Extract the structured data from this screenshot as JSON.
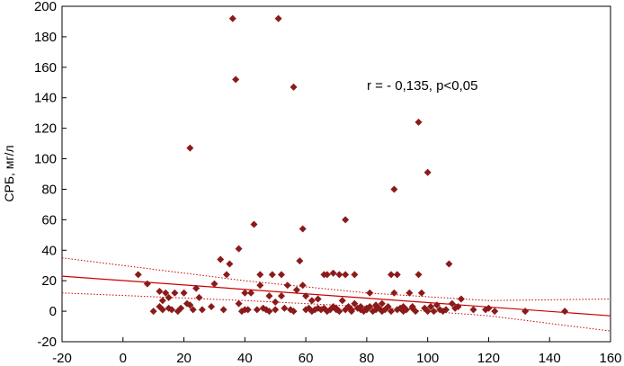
{
  "chart_data": {
    "type": "scatter",
    "title": "",
    "xlabel": "",
    "ylabel": "СРБ, мг/л",
    "xlim": [
      -20,
      160
    ],
    "ylim": [
      -20,
      200
    ],
    "xticks": [
      "-20",
      "0",
      "20",
      "40",
      "60",
      "80",
      "100",
      "120",
      "140",
      "160"
    ],
    "yticks": [
      "-20",
      "0",
      "20",
      "40",
      "60",
      "80",
      "100",
      "120",
      "140",
      "160",
      "180",
      "200"
    ],
    "grid": false,
    "annotation": "r = - 0,135, p<0,05",
    "marker_color": "#8b1a1a",
    "line_color": "#cc0000",
    "regression_line": [
      {
        "x": -20,
        "y": 23
      },
      {
        "x": 160,
        "y": -3
      }
    ],
    "confidence_upper": [
      {
        "x": -20,
        "y": 35
      },
      {
        "x": 40,
        "y": 20
      },
      {
        "x": 80,
        "y": 12
      },
      {
        "x": 120,
        "y": 7
      },
      {
        "x": 160,
        "y": 8
      }
    ],
    "confidence_lower": [
      {
        "x": -20,
        "y": 12
      },
      {
        "x": 40,
        "y": 7
      },
      {
        "x": 80,
        "y": 3
      },
      {
        "x": 120,
        "y": -3
      },
      {
        "x": 160,
        "y": -13
      }
    ],
    "points": [
      [
        5,
        24
      ],
      [
        8,
        18
      ],
      [
        10,
        0
      ],
      [
        12,
        3
      ],
      [
        12,
        13
      ],
      [
        13,
        1
      ],
      [
        13,
        7
      ],
      [
        14,
        12
      ],
      [
        15,
        2
      ],
      [
        15,
        9
      ],
      [
        16,
        1
      ],
      [
        17,
        12
      ],
      [
        18,
        0
      ],
      [
        19,
        2
      ],
      [
        20,
        12
      ],
      [
        21,
        5
      ],
      [
        22,
        107
      ],
      [
        22,
        4
      ],
      [
        23,
        1
      ],
      [
        24,
        15
      ],
      [
        25,
        9
      ],
      [
        26,
        1
      ],
      [
        29,
        3
      ],
      [
        30,
        18
      ],
      [
        32,
        34
      ],
      [
        33,
        1
      ],
      [
        34,
        24
      ],
      [
        35,
        31
      ],
      [
        36,
        192
      ],
      [
        37,
        152
      ],
      [
        38,
        41
      ],
      [
        38,
        5
      ],
      [
        39,
        0
      ],
      [
        40,
        1
      ],
      [
        40,
        12
      ],
      [
        41,
        1
      ],
      [
        42,
        12
      ],
      [
        43,
        57
      ],
      [
        44,
        1
      ],
      [
        45,
        24
      ],
      [
        45,
        17
      ],
      [
        46,
        2
      ],
      [
        47,
        1
      ],
      [
        48,
        0
      ],
      [
        48,
        10
      ],
      [
        49,
        24
      ],
      [
        50,
        1
      ],
      [
        50,
        6
      ],
      [
        51,
        192
      ],
      [
        52,
        10
      ],
      [
        52,
        24
      ],
      [
        53,
        2
      ],
      [
        54,
        17
      ],
      [
        55,
        1
      ],
      [
        56,
        147
      ],
      [
        56,
        0
      ],
      [
        57,
        14
      ],
      [
        58,
        33
      ],
      [
        59,
        54
      ],
      [
        59,
        17
      ],
      [
        60,
        1
      ],
      [
        60,
        10
      ],
      [
        61,
        2
      ],
      [
        62,
        0
      ],
      [
        62,
        7
      ],
      [
        63,
        1
      ],
      [
        64,
        8
      ],
      [
        64,
        2
      ],
      [
        65,
        1
      ],
      [
        66,
        24
      ],
      [
        66,
        2
      ],
      [
        67,
        0
      ],
      [
        67,
        24
      ],
      [
        68,
        1
      ],
      [
        69,
        25
      ],
      [
        69,
        3
      ],
      [
        70,
        2
      ],
      [
        70,
        1
      ],
      [
        71,
        24
      ],
      [
        71,
        0
      ],
      [
        72,
        7
      ],
      [
        73,
        1
      ],
      [
        73,
        60
      ],
      [
        73,
        24
      ],
      [
        74,
        3
      ],
      [
        75,
        1
      ],
      [
        75,
        0
      ],
      [
        76,
        24
      ],
      [
        76,
        5
      ],
      [
        77,
        2
      ],
      [
        78,
        1
      ],
      [
        78,
        3
      ],
      [
        79,
        0
      ],
      [
        80,
        2
      ],
      [
        80,
        1
      ],
      [
        81,
        12
      ],
      [
        81,
        3
      ],
      [
        82,
        0
      ],
      [
        83,
        1
      ],
      [
        83,
        4
      ],
      [
        84,
        2
      ],
      [
        85,
        0
      ],
      [
        85,
        5
      ],
      [
        86,
        1
      ],
      [
        87,
        3
      ],
      [
        88,
        24
      ],
      [
        88,
        0
      ],
      [
        89,
        80
      ],
      [
        89,
        12
      ],
      [
        90,
        24
      ],
      [
        90,
        1
      ],
      [
        91,
        2
      ],
      [
        92,
        0
      ],
      [
        92,
        3
      ],
      [
        93,
        1
      ],
      [
        94,
        12
      ],
      [
        95,
        3
      ],
      [
        95,
        2
      ],
      [
        96,
        0
      ],
      [
        97,
        124
      ],
      [
        97,
        24
      ],
      [
        98,
        12
      ],
      [
        99,
        2
      ],
      [
        100,
        91
      ],
      [
        100,
        0
      ],
      [
        101,
        3
      ],
      [
        102,
        0
      ],
      [
        103,
        4
      ],
      [
        104,
        1
      ],
      [
        105,
        0
      ],
      [
        106,
        1
      ],
      [
        107,
        31
      ],
      [
        108,
        5
      ],
      [
        109,
        2
      ],
      [
        110,
        3
      ],
      [
        111,
        8
      ],
      [
        115,
        1
      ],
      [
        119,
        1
      ],
      [
        120,
        2
      ],
      [
        122,
        0
      ],
      [
        132,
        0
      ],
      [
        145,
        0
      ]
    ]
  }
}
